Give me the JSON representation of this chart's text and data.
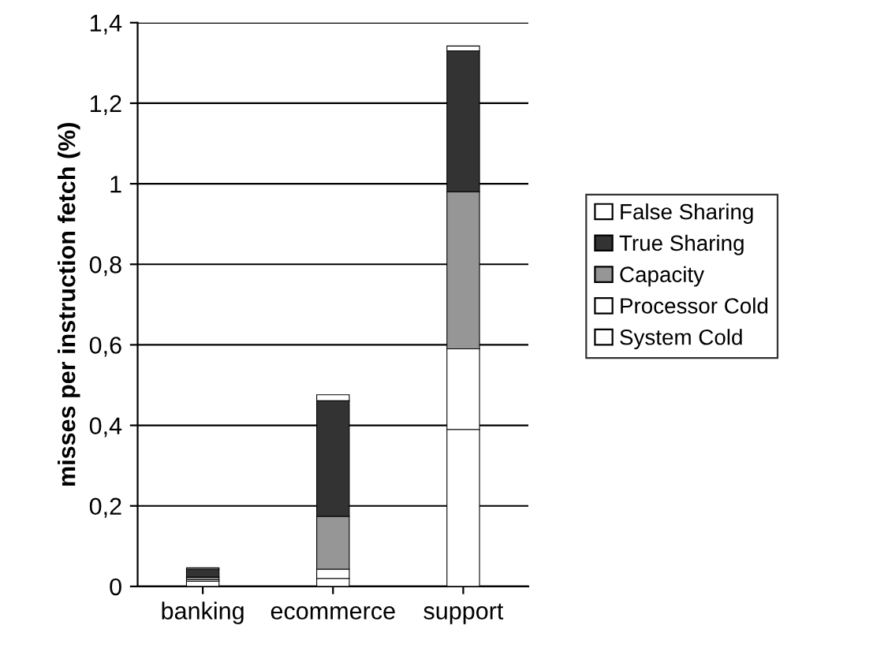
{
  "chart_data": {
    "type": "bar",
    "stacked": true,
    "ylabel": "misses per instruction fetch (%)",
    "categories": [
      "banking",
      "ecommerce",
      "support"
    ],
    "series": [
      {
        "name": "System Cold",
        "color": "#ffffff",
        "values": [
          0.013,
          0.02,
          0.39
        ]
      },
      {
        "name": "Processor Cold",
        "color": "#ffffff",
        "values": [
          0.004,
          0.023,
          0.2
        ]
      },
      {
        "name": "Capacity",
        "color": "#969696",
        "values": [
          0.006,
          0.131,
          0.39
        ]
      },
      {
        "name": "True Sharing",
        "color": "#333333",
        "values": [
          0.02,
          0.287,
          0.35
        ]
      },
      {
        "name": "False Sharing",
        "color": "#ffffff",
        "values": [
          0.003,
          0.015,
          0.012
        ]
      }
    ],
    "ylim": [
      0,
      1.4
    ],
    "yticks": [
      {
        "value": 0,
        "label": "0"
      },
      {
        "value": 0.2,
        "label": "0,2"
      },
      {
        "value": 0.4,
        "label": "0,4"
      },
      {
        "value": 0.6,
        "label": "0,6"
      },
      {
        "value": 0.8,
        "label": "0,8"
      },
      {
        "value": 1,
        "label": "1"
      },
      {
        "value": 1.2,
        "label": "1,2"
      },
      {
        "value": 1.4,
        "label": "1,4"
      }
    ],
    "grid": "y",
    "legend": "right"
  }
}
